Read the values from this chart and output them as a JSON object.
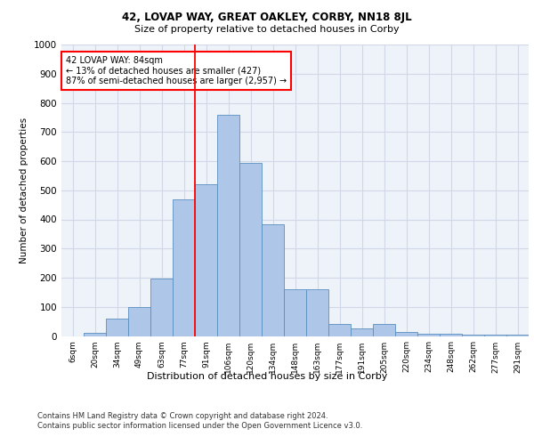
{
  "title1": "42, LOVAP WAY, GREAT OAKLEY, CORBY, NN18 8JL",
  "title2": "Size of property relative to detached houses in Corby",
  "xlabel": "Distribution of detached houses by size in Corby",
  "ylabel": "Number of detached properties",
  "categories": [
    "6sqm",
    "20sqm",
    "34sqm",
    "49sqm",
    "63sqm",
    "77sqm",
    "91sqm",
    "106sqm",
    "120sqm",
    "134sqm",
    "148sqm",
    "163sqm",
    "177sqm",
    "191sqm",
    "205sqm",
    "220sqm",
    "234sqm",
    "248sqm",
    "262sqm",
    "277sqm",
    "291sqm"
  ],
  "values": [
    0,
    12,
    60,
    100,
    198,
    470,
    520,
    760,
    595,
    383,
    160,
    160,
    40,
    27,
    42,
    13,
    8,
    8,
    5,
    5,
    5
  ],
  "bar_color": "#aec6e8",
  "bar_edge_color": "#5a8fc0",
  "grid_color": "#d0d8e8",
  "background_color": "#eef2f9",
  "annotation_text": "42 LOVAP WAY: 84sqm\n← 13% of detached houses are smaller (427)\n87% of semi-detached houses are larger (2,957) →",
  "annotation_box_color": "white",
  "annotation_box_edge": "red",
  "ylim": [
    0,
    1000
  ],
  "yticks": [
    0,
    100,
    200,
    300,
    400,
    500,
    600,
    700,
    800,
    900,
    1000
  ],
  "footer1": "Contains HM Land Registry data © Crown copyright and database right 2024.",
  "footer2": "Contains public sector information licensed under the Open Government Licence v3.0."
}
